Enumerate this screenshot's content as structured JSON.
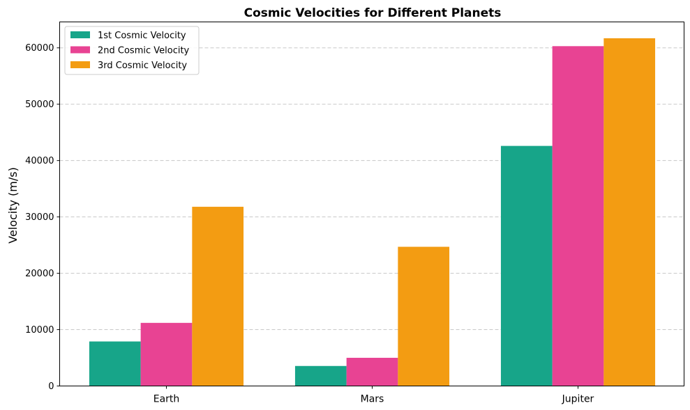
{
  "chart_data": {
    "type": "bar",
    "title": "Cosmic Velocities for Different Planets",
    "xlabel": "",
    "ylabel": "Velocity (m/s)",
    "categories": [
      "Earth",
      "Mars",
      "Jupiter"
    ],
    "series": [
      {
        "name": "1st Cosmic Velocity",
        "color": "#17a589",
        "values": [
          7900,
          3550,
          42600
        ]
      },
      {
        "name": "2nd Cosmic Velocity",
        "color": "#e84393",
        "values": [
          11200,
          5000,
          60300
        ]
      },
      {
        "name": "3rd Cosmic Velocity",
        "color": "#f39c12",
        "values": [
          31800,
          24700,
          61700
        ]
      }
    ],
    "ylim": [
      0,
      64600
    ],
    "yticks": [
      0,
      10000,
      20000,
      30000,
      40000,
      50000,
      60000
    ],
    "grid": "y, dashed",
    "legend_position": "top-left"
  }
}
